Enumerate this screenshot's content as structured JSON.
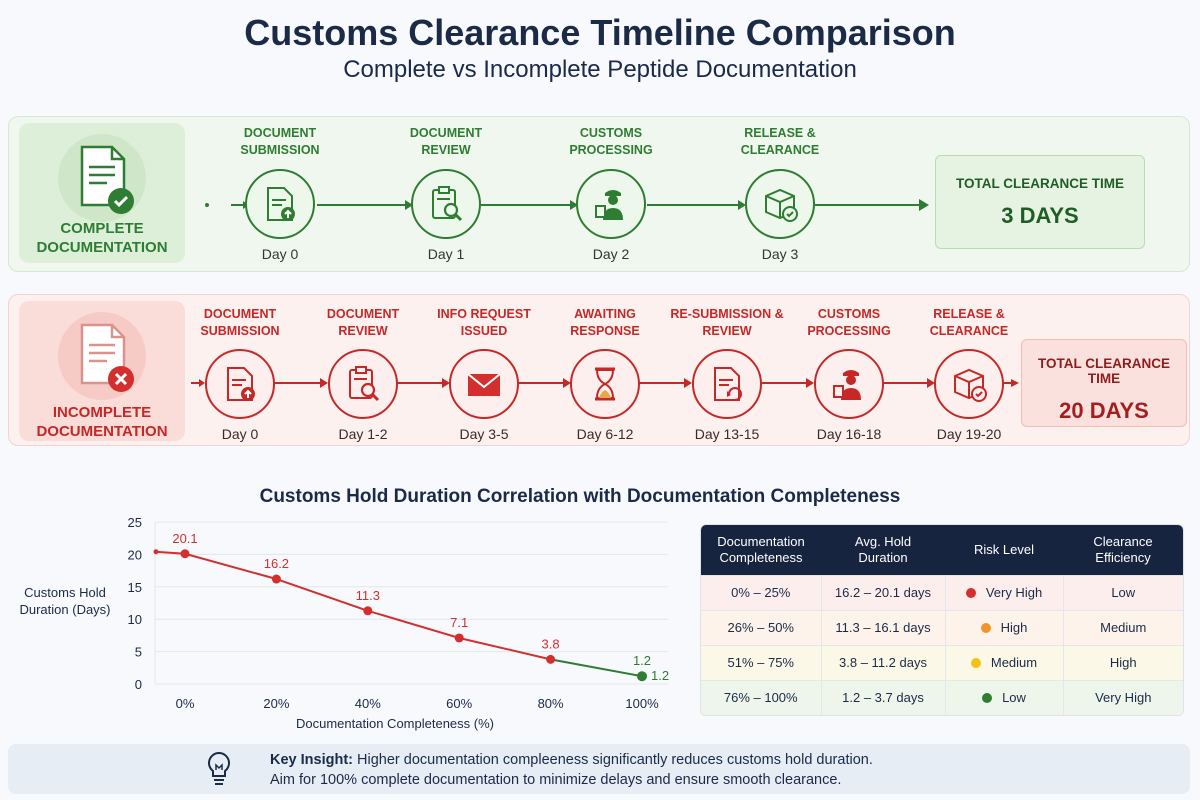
{
  "title": "Customs Clearance Timeline Comparison",
  "subtitle": "Complete vs Incomplete Peptide Documentation",
  "complete": {
    "label_line1": "COMPLETE",
    "label_line2": "DOCUMENTATION",
    "badge_icon": "document-check-icon",
    "steps": [
      {
        "title1": "DOCUMENT",
        "title2": "SUBMISSION",
        "day": "Day 0",
        "icon": "document-upload-icon"
      },
      {
        "title1": "DOCUMENT",
        "title2": "REVIEW",
        "day": "Day 1",
        "icon": "clipboard-search-icon"
      },
      {
        "title1": "CUSTOMS",
        "title2": "PROCESSING",
        "day": "Day 2",
        "icon": "customs-officer-icon"
      },
      {
        "title1": "RELEASE &",
        "title2": "CLEARANCE",
        "day": "Day 3",
        "icon": "package-check-icon"
      }
    ],
    "total_label": "TOTAL CLEARANCE TIME",
    "total_value": "3 DAYS",
    "color": "#2e7d32"
  },
  "incomplete": {
    "label_line1": "INCOMPLETE",
    "label_line2": "DOCUMENTATION",
    "badge_icon": "document-x-icon",
    "steps": [
      {
        "title1": "DOCUMENT",
        "title2": "SUBMISSION",
        "day": "Day 0",
        "icon": "document-upload-icon"
      },
      {
        "title1": "DOCUMENT",
        "title2": "REVIEW",
        "day": "Day 1-2",
        "icon": "clipboard-search-icon"
      },
      {
        "title1": "INFO REQUEST",
        "title2": "ISSUED",
        "day": "Day 3-5",
        "icon": "envelope-icon"
      },
      {
        "title1": "AWAITING",
        "title2": "RESPONSE",
        "day": "Day 6-12",
        "icon": "hourglass-icon"
      },
      {
        "title1": "RE-SUBMISSION &",
        "title2": "REVIEW",
        "day": "Day 13-15",
        "icon": "document-refresh-icon"
      },
      {
        "title1": "CUSTOMS",
        "title2": "PROCESSING",
        "day": "Day 16-18",
        "icon": "customs-officer-icon"
      },
      {
        "title1": "RELEASE &",
        "title2": "CLEARANCE",
        "day": "Day 19-20",
        "icon": "package-check-icon"
      }
    ],
    "total_label": "TOTAL CLEARANCE TIME",
    "total_value": "20 DAYS",
    "color": "#c62828"
  },
  "section_title": "Customs Hold Duration Correlation with Documentation Completeness",
  "chart_data": {
    "type": "line",
    "title": "Customs Hold Duration Correlation with Documentation Completeness",
    "xlabel": "Documentation Completeness (%)",
    "ylabel_line1": "Customs Hold",
    "ylabel_line2": "Duration (Days)",
    "x": [
      0,
      20,
      40,
      60,
      80,
      100
    ],
    "x_tick_labels": [
      "0%",
      "20%",
      "40%",
      "60%",
      "80%",
      "100%"
    ],
    "y": [
      20.1,
      16.2,
      11.3,
      7.1,
      3.8,
      1.2
    ],
    "data_labels": [
      "20.1",
      "16.2",
      "11.3",
      "7.1",
      "3.8",
      "1.2"
    ],
    "ylim": [
      0,
      25
    ],
    "y_ticks": [
      0,
      5,
      10,
      15,
      20,
      25
    ],
    "grid": true,
    "line_color": "#d32f2f",
    "end_color": "#2e7d32"
  },
  "table": {
    "headers": [
      [
        "Documentation",
        "Completeness"
      ],
      [
        "Avg. Hold",
        "Duration"
      ],
      [
        "Risk Level"
      ],
      [
        "Clearance",
        "Efficiency"
      ]
    ],
    "rows": [
      {
        "range": "0% – 25%",
        "duration": "16.2 – 20.1 days",
        "risk": "Very High",
        "efficiency": "Low",
        "dot": "#d32f2f",
        "bg": "#fdeeee"
      },
      {
        "range": "26% – 50%",
        "duration": "11.3 – 16.1 days",
        "risk": "High",
        "efficiency": "Medium",
        "dot": "#f0932b",
        "bg": "#fdf3ea"
      },
      {
        "range": "51% – 75%",
        "duration": "3.8 – 11.2 days",
        "risk": "Medium",
        "efficiency": "High",
        "dot": "#f4c20d",
        "bg": "#fbf8e7"
      },
      {
        "range": "76% – 100%",
        "duration": "1.2 – 3.7 days",
        "risk": "Low",
        "efficiency": "Very High",
        "dot": "#2e7d32",
        "bg": "#eef6ec"
      }
    ]
  },
  "insight": {
    "icon": "lightbulb-icon",
    "bold": "Key Insight:",
    "line1": " Higher documentation compleeness significantly reduces customs hold duration.",
    "line2": "Aim for 100% complete documentation to minimize delays and ensure smooth clearance."
  }
}
